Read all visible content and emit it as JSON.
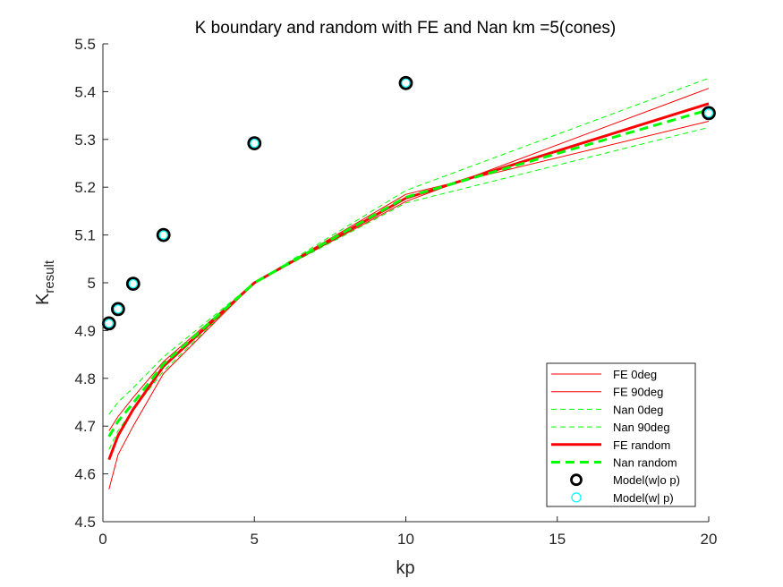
{
  "chart_data": {
    "type": "line",
    "title": "K boundary and random with FE and Nan km =5(cones)",
    "xlabel": "kp",
    "ylabel_main": "K",
    "ylabel_sub": "result",
    "xlim": [
      0,
      20
    ],
    "ylim": [
      4.5,
      5.5
    ],
    "xticks": [
      0,
      5,
      10,
      15,
      20
    ],
    "xtick_labels": [
      "0",
      "5",
      "10",
      "15",
      "20"
    ],
    "yticks": [
      4.5,
      4.6,
      4.7,
      4.8,
      4.9,
      5.0,
      5.1,
      5.2,
      5.3,
      5.4,
      5.5
    ],
    "ytick_labels": [
      "4.5",
      "4.6",
      "4.7",
      "4.8",
      "4.9",
      "5",
      "5.1",
      "5.2",
      "5.3",
      "5.4",
      "5.5"
    ],
    "grid": false,
    "legend_position": "bottom-right",
    "series": [
      {
        "name": "FE 0deg",
        "style": "line",
        "color": "#ff0000",
        "dash": "solid",
        "width": 1,
        "x": [
          0.2,
          0.5,
          1,
          2,
          5,
          10,
          20
        ],
        "y": [
          4.568,
          4.64,
          4.7,
          4.81,
          5.0,
          5.17,
          5.407
        ]
      },
      {
        "name": "FE 90deg",
        "style": "line",
        "color": "#ff0000",
        "dash": "solid",
        "width": 1,
        "x": [
          0.2,
          0.5,
          1,
          2,
          5,
          10,
          20
        ],
        "y": [
          4.69,
          4.72,
          4.76,
          4.835,
          5.0,
          5.185,
          5.338
        ]
      },
      {
        "name": "Nan 0deg",
        "style": "line",
        "color": "#00ff00",
        "dash": "dashed",
        "width": 1,
        "x": [
          0.2,
          0.5,
          1,
          2,
          5,
          10,
          20
        ],
        "y": [
          4.651,
          4.69,
          4.735,
          4.815,
          5.0,
          5.193,
          5.428
        ]
      },
      {
        "name": "Nan 90deg",
        "style": "line",
        "color": "#00ff00",
        "dash": "dashed",
        "width": 1,
        "x": [
          0.2,
          0.5,
          1,
          2,
          5,
          10,
          20
        ],
        "y": [
          4.725,
          4.75,
          4.78,
          4.845,
          5.0,
          5.167,
          5.325
        ]
      },
      {
        "name": "FE random",
        "style": "line",
        "color": "#ff0000",
        "dash": "solid",
        "width": 3,
        "x": [
          0.2,
          0.5,
          1,
          2,
          5,
          10,
          20
        ],
        "y": [
          4.63,
          4.68,
          4.735,
          4.825,
          5.0,
          5.177,
          5.375
        ]
      },
      {
        "name": "Nan random",
        "style": "line",
        "color": "#00ff00",
        "dash": "dashed",
        "width": 3,
        "x": [
          0.2,
          0.5,
          1,
          2,
          5,
          10,
          20
        ],
        "y": [
          4.678,
          4.71,
          4.748,
          4.83,
          5.0,
          5.179,
          5.362
        ]
      },
      {
        "name": "Model(w|o p)",
        "style": "marker",
        "color": "#000000",
        "x": [
          0.2,
          0.5,
          1,
          2,
          5,
          10,
          20
        ],
        "y": [
          4.915,
          4.945,
          4.998,
          5.1,
          5.292,
          5.418,
          5.355
        ]
      },
      {
        "name": "Model(w| p)",
        "style": "marker",
        "color": "#00ffff",
        "x": [
          0.2,
          0.5,
          1,
          2,
          5,
          10,
          20
        ],
        "y": [
          4.915,
          4.945,
          4.998,
          5.1,
          5.292,
          5.418,
          5.355
        ]
      }
    ]
  }
}
